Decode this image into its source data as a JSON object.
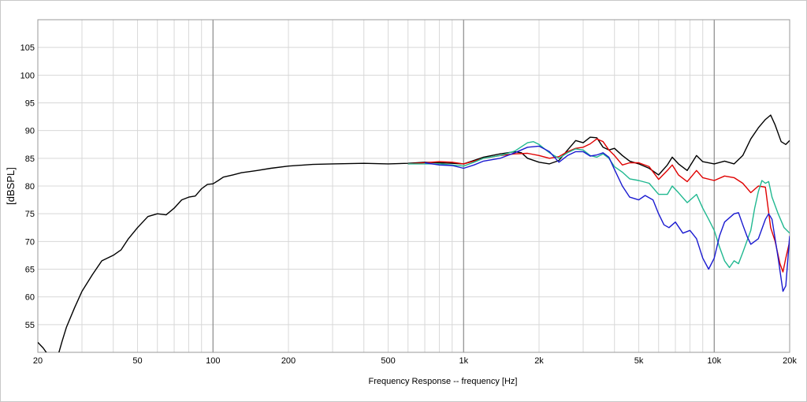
{
  "chart_data": {
    "type": "line",
    "title": "",
    "xlabel": "Frequency Response -- frequency [Hz]",
    "ylabel": "[dBSPL]",
    "x_scale": "log",
    "xlim": [
      20,
      20000
    ],
    "ylim": [
      50,
      110
    ],
    "grid": true,
    "x_ticks": [
      {
        "v": 20,
        "label": "20"
      },
      {
        "v": 50,
        "label": "50"
      },
      {
        "v": 100,
        "label": "100"
      },
      {
        "v": 200,
        "label": "200"
      },
      {
        "v": 500,
        "label": "500"
      },
      {
        "v": 1000,
        "label": "1k"
      },
      {
        "v": 2000,
        "label": "2k"
      },
      {
        "v": 5000,
        "label": "5k"
      },
      {
        "v": 10000,
        "label": "10k"
      },
      {
        "v": 20000,
        "label": "20k"
      }
    ],
    "y_ticks": [
      55,
      60,
      65,
      70,
      75,
      80,
      85,
      90,
      95,
      100,
      105
    ],
    "series": [
      {
        "color": "#000000",
        "points": [
          [
            20,
            51.8
          ],
          [
            21,
            50.8
          ],
          [
            22,
            49.5
          ],
          [
            24,
            49.2
          ],
          [
            25,
            52
          ],
          [
            26,
            54.5
          ],
          [
            28,
            58
          ],
          [
            30,
            61
          ],
          [
            33,
            64
          ],
          [
            36,
            66.5
          ],
          [
            40,
            67.5
          ],
          [
            43,
            68.5
          ],
          [
            46,
            70.5
          ],
          [
            50,
            72.5
          ],
          [
            55,
            74.5
          ],
          [
            60,
            75
          ],
          [
            65,
            74.8
          ],
          [
            70,
            76
          ],
          [
            75,
            77.5
          ],
          [
            80,
            78
          ],
          [
            85,
            78.2
          ],
          [
            90,
            79.5
          ],
          [
            95,
            80.3
          ],
          [
            100,
            80.4
          ],
          [
            105,
            81
          ],
          [
            110,
            81.6
          ],
          [
            120,
            82
          ],
          [
            130,
            82.4
          ],
          [
            140,
            82.6
          ],
          [
            150,
            82.8
          ],
          [
            170,
            83.2
          ],
          [
            200,
            83.6
          ],
          [
            250,
            83.9
          ],
          [
            300,
            84
          ],
          [
            400,
            84.1
          ],
          [
            500,
            84
          ],
          [
            600,
            84.1
          ],
          [
            700,
            84.3
          ],
          [
            800,
            84.2
          ],
          [
            900,
            84.1
          ],
          [
            1000,
            84
          ],
          [
            1100,
            84.6
          ],
          [
            1200,
            85.2
          ],
          [
            1400,
            85.8
          ],
          [
            1600,
            86.2
          ],
          [
            1700,
            86
          ],
          [
            1800,
            85
          ],
          [
            2000,
            84.3
          ],
          [
            2200,
            84
          ],
          [
            2400,
            84.6
          ],
          [
            2600,
            86.5
          ],
          [
            2800,
            88.2
          ],
          [
            3000,
            87.8
          ],
          [
            3200,
            88.8
          ],
          [
            3400,
            88.7
          ],
          [
            3600,
            87
          ],
          [
            3800,
            86.5
          ],
          [
            4000,
            86.8
          ],
          [
            4300,
            85.5
          ],
          [
            4600,
            84.5
          ],
          [
            5000,
            84
          ],
          [
            5500,
            83.2
          ],
          [
            6000,
            82
          ],
          [
            6500,
            83.8
          ],
          [
            6800,
            85.2
          ],
          [
            7200,
            84
          ],
          [
            7800,
            82.8
          ],
          [
            8500,
            85.5
          ],
          [
            9000,
            84.4
          ],
          [
            10000,
            84
          ],
          [
            11000,
            84.5
          ],
          [
            12000,
            84
          ],
          [
            13000,
            85.5
          ],
          [
            14000,
            88.5
          ],
          [
            15000,
            90.5
          ],
          [
            16000,
            92
          ],
          [
            16800,
            92.8
          ],
          [
            17500,
            91
          ],
          [
            18500,
            88
          ],
          [
            19300,
            87.5
          ],
          [
            20000,
            88.2
          ]
        ]
      },
      {
        "color": "#e00000",
        "points": [
          [
            600,
            84
          ],
          [
            700,
            84.2
          ],
          [
            800,
            84.4
          ],
          [
            900,
            84.3
          ],
          [
            1000,
            84
          ],
          [
            1100,
            84.5
          ],
          [
            1200,
            85
          ],
          [
            1400,
            85.5
          ],
          [
            1600,
            85.8
          ],
          [
            1800,
            85.9
          ],
          [
            2000,
            85.5
          ],
          [
            2200,
            85
          ],
          [
            2400,
            85.3
          ],
          [
            2600,
            86.2
          ],
          [
            2800,
            86.8
          ],
          [
            3000,
            87
          ],
          [
            3200,
            87.6
          ],
          [
            3400,
            88.5
          ],
          [
            3600,
            88
          ],
          [
            3800,
            86.5
          ],
          [
            4000,
            85.5
          ],
          [
            4300,
            83.8
          ],
          [
            4600,
            84.2
          ],
          [
            5000,
            84.2
          ],
          [
            5500,
            83.5
          ],
          [
            6000,
            81.2
          ],
          [
            6500,
            82.8
          ],
          [
            6800,
            83.8
          ],
          [
            7200,
            82
          ],
          [
            7800,
            80.8
          ],
          [
            8500,
            82.8
          ],
          [
            9000,
            81.5
          ],
          [
            10000,
            81
          ],
          [
            11000,
            81.8
          ],
          [
            12000,
            81.5
          ],
          [
            13000,
            80.5
          ],
          [
            14000,
            78.8
          ],
          [
            15000,
            80
          ],
          [
            16000,
            79.8
          ],
          [
            16800,
            72.5
          ],
          [
            17500,
            70
          ],
          [
            18300,
            66
          ],
          [
            18800,
            64.5
          ],
          [
            19300,
            67
          ],
          [
            20000,
            70
          ]
        ]
      },
      {
        "color": "#20b890",
        "points": [
          [
            600,
            84
          ],
          [
            700,
            84
          ],
          [
            800,
            84
          ],
          [
            900,
            83.8
          ],
          [
            1000,
            83.6
          ],
          [
            1100,
            84.3
          ],
          [
            1200,
            85
          ],
          [
            1400,
            85.5
          ],
          [
            1600,
            86.3
          ],
          [
            1800,
            87.8
          ],
          [
            1900,
            88
          ],
          [
            2000,
            87.5
          ],
          [
            2200,
            86
          ],
          [
            2400,
            85
          ],
          [
            2600,
            86
          ],
          [
            2800,
            86.7
          ],
          [
            3000,
            86.5
          ],
          [
            3200,
            85.5
          ],
          [
            3400,
            85.2
          ],
          [
            3600,
            85.8
          ],
          [
            3800,
            85
          ],
          [
            4000,
            83.5
          ],
          [
            4300,
            82.5
          ],
          [
            4600,
            81.3
          ],
          [
            5000,
            81
          ],
          [
            5500,
            80.5
          ],
          [
            6000,
            78.5
          ],
          [
            6500,
            78.5
          ],
          [
            6800,
            80
          ],
          [
            7200,
            78.8
          ],
          [
            7800,
            77
          ],
          [
            8500,
            78.5
          ],
          [
            9000,
            76
          ],
          [
            9500,
            74
          ],
          [
            10000,
            72
          ],
          [
            10500,
            69
          ],
          [
            11000,
            66.5
          ],
          [
            11500,
            65.3
          ],
          [
            12000,
            66.5
          ],
          [
            12500,
            66
          ],
          [
            13000,
            68
          ],
          [
            14000,
            72
          ],
          [
            14500,
            76
          ],
          [
            15000,
            79
          ],
          [
            15500,
            81
          ],
          [
            16000,
            80.5
          ],
          [
            16500,
            80.8
          ],
          [
            17000,
            78
          ],
          [
            18000,
            75
          ],
          [
            19000,
            72.5
          ],
          [
            20000,
            71.5
          ]
        ]
      },
      {
        "color": "#1a1ad0",
        "points": [
          [
            700,
            84.2
          ],
          [
            800,
            83.8
          ],
          [
            900,
            83.7
          ],
          [
            1000,
            83.2
          ],
          [
            1100,
            83.8
          ],
          [
            1200,
            84.5
          ],
          [
            1400,
            85
          ],
          [
            1600,
            86
          ],
          [
            1800,
            87
          ],
          [
            2000,
            87.2
          ],
          [
            2200,
            86.2
          ],
          [
            2400,
            84.3
          ],
          [
            2600,
            85.5
          ],
          [
            2800,
            86.2
          ],
          [
            3000,
            86.2
          ],
          [
            3200,
            85.4
          ],
          [
            3400,
            85.6
          ],
          [
            3600,
            86
          ],
          [
            3800,
            85.2
          ],
          [
            4000,
            83
          ],
          [
            4300,
            80
          ],
          [
            4600,
            78
          ],
          [
            5000,
            77.5
          ],
          [
            5300,
            78.3
          ],
          [
            5700,
            77.5
          ],
          [
            6000,
            75
          ],
          [
            6300,
            73
          ],
          [
            6600,
            72.5
          ],
          [
            7000,
            73.5
          ],
          [
            7500,
            71.5
          ],
          [
            8000,
            72
          ],
          [
            8500,
            70.5
          ],
          [
            9000,
            67
          ],
          [
            9500,
            65
          ],
          [
            10000,
            67
          ],
          [
            10500,
            71
          ],
          [
            11000,
            73.5
          ],
          [
            12000,
            75
          ],
          [
            12500,
            75.2
          ],
          [
            13000,
            73
          ],
          [
            13500,
            71
          ],
          [
            14000,
            69.5
          ],
          [
            15000,
            70.5
          ],
          [
            16000,
            74
          ],
          [
            16500,
            75
          ],
          [
            17000,
            74
          ],
          [
            18000,
            67
          ],
          [
            18800,
            61
          ],
          [
            19300,
            62
          ],
          [
            20000,
            71
          ]
        ]
      }
    ]
  }
}
